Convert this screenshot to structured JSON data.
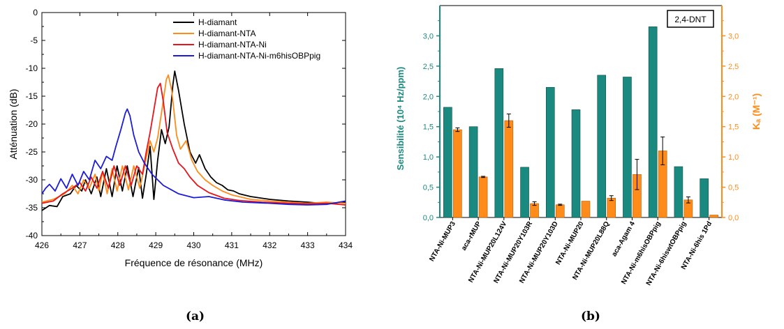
{
  "colors": {
    "teal": "#1a8a80",
    "orange": "#ff8c1a",
    "axis_teal": "#1a8a80",
    "axis_orange": "#ff8c1a"
  },
  "captions": {
    "a": "(a)",
    "b": "(b)"
  },
  "chart_data": [
    {
      "type": "line",
      "xlabel": "Fréquence de résonance (MHz)",
      "ylabel": "Atténuation (dB)",
      "xlim": [
        426,
        434
      ],
      "ylim": [
        -40,
        0
      ],
      "x_ticks": [
        "426",
        "427",
        "428",
        "429",
        "430",
        "431",
        "432",
        "433",
        "434"
      ],
      "y_ticks": [
        "0",
        "-5",
        "-10",
        "-15",
        "-20",
        "-25",
        "-30",
        "-35",
        "-40"
      ],
      "legend_position": "top-right",
      "grid": false,
      "series": [
        {
          "name": "H-diamant",
          "color": "#000000",
          "points": [
            [
              426.0,
              -35.5
            ],
            [
              426.2,
              -34.6
            ],
            [
              426.4,
              -34.8
            ],
            [
              426.55,
              -33.0
            ],
            [
              426.75,
              -32.5
            ],
            [
              426.9,
              -31.0
            ],
            [
              427.05,
              -32.0
            ],
            [
              427.15,
              -30.0
            ],
            [
              427.3,
              -32.5
            ],
            [
              427.45,
              -29.5
            ],
            [
              427.55,
              -33.0
            ],
            [
              427.7,
              -28.0
            ],
            [
              427.85,
              -33.0
            ],
            [
              427.98,
              -27.5
            ],
            [
              428.12,
              -32.0
            ],
            [
              428.25,
              -27.5
            ],
            [
              428.4,
              -33.0
            ],
            [
              428.55,
              -27.8
            ],
            [
              428.65,
              -33.3
            ],
            [
              428.75,
              -29.0
            ],
            [
              428.85,
              -24.0
            ],
            [
              428.95,
              -33.5
            ],
            [
              429.05,
              -26.5
            ],
            [
              429.15,
              -21.0
            ],
            [
              429.25,
              -23.5
            ],
            [
              429.35,
              -20.5
            ],
            [
              429.45,
              -13.0
            ],
            [
              429.5,
              -10.5
            ],
            [
              429.6,
              -14.0
            ],
            [
              429.75,
              -20.0
            ],
            [
              429.9,
              -25.0
            ],
            [
              430.05,
              -27.0
            ],
            [
              430.15,
              -25.5
            ],
            [
              430.3,
              -28.0
            ],
            [
              430.45,
              -29.5
            ],
            [
              430.6,
              -30.5
            ],
            [
              430.75,
              -31.0
            ],
            [
              430.9,
              -31.8
            ],
            [
              431.05,
              -32.0
            ],
            [
              431.2,
              -32.5
            ],
            [
              431.5,
              -33.0
            ],
            [
              432.0,
              -33.5
            ],
            [
              432.5,
              -33.8
            ],
            [
              433.0,
              -34.0
            ],
            [
              433.5,
              -34.3
            ],
            [
              434.0,
              -34.0
            ]
          ]
        },
        {
          "name": "H-diamant-NTA",
          "color": "#ff8c1a",
          "points": [
            [
              426.0,
              -34.0
            ],
            [
              426.3,
              -33.5
            ],
            [
              426.6,
              -32.5
            ],
            [
              426.8,
              -31.0
            ],
            [
              426.95,
              -32.5
            ],
            [
              427.1,
              -30.0
            ],
            [
              427.25,
              -31.5
            ],
            [
              427.4,
              -29.0
            ],
            [
              427.5,
              -32.0
            ],
            [
              427.6,
              -28.5
            ],
            [
              427.72,
              -32.5
            ],
            [
              427.85,
              -28.0
            ],
            [
              427.98,
              -32.0
            ],
            [
              428.12,
              -27.5
            ],
            [
              428.28,
              -31.8
            ],
            [
              428.42,
              -27.5
            ],
            [
              428.58,
              -31.5
            ],
            [
              428.75,
              -26.0
            ],
            [
              428.85,
              -23.0
            ],
            [
              428.95,
              -25.0
            ],
            [
              429.05,
              -22.5
            ],
            [
              429.15,
              -18.0
            ],
            [
              429.28,
              -12.0
            ],
            [
              429.33,
              -11.2
            ],
            [
              429.42,
              -14.0
            ],
            [
              429.55,
              -22.0
            ],
            [
              429.65,
              -24.5
            ],
            [
              429.8,
              -23.0
            ],
            [
              429.95,
              -26.5
            ],
            [
              430.1,
              -28.5
            ],
            [
              430.3,
              -30.0
            ],
            [
              430.5,
              -31.0
            ],
            [
              430.75,
              -32.0
            ],
            [
              431.0,
              -32.7
            ],
            [
              431.5,
              -33.5
            ],
            [
              432.0,
              -33.8
            ],
            [
              432.5,
              -34.0
            ],
            [
              433.0,
              -34.2
            ],
            [
              433.5,
              -34.0
            ],
            [
              434.0,
              -34.2
            ]
          ]
        },
        {
          "name": "H-diamant-NTA-Ni",
          "color": "#e8141c",
          "points": [
            [
              426.0,
              -34.2
            ],
            [
              426.3,
              -33.8
            ],
            [
              426.55,
              -32.5
            ],
            [
              426.8,
              -31.5
            ],
            [
              427.0,
              -30.5
            ],
            [
              427.15,
              -32.0
            ],
            [
              427.3,
              -29.5
            ],
            [
              427.45,
              -31.5
            ],
            [
              427.6,
              -28.5
            ],
            [
              427.75,
              -31.5
            ],
            [
              427.9,
              -27.5
            ],
            [
              428.05,
              -31.0
            ],
            [
              428.2,
              -27.5
            ],
            [
              428.35,
              -31.0
            ],
            [
              428.5,
              -27.5
            ],
            [
              428.65,
              -29.0
            ],
            [
              428.75,
              -25.0
            ],
            [
              428.85,
              -21.5
            ],
            [
              428.95,
              -17.5
            ],
            [
              429.05,
              -13.5
            ],
            [
              429.12,
              -12.7
            ],
            [
              429.2,
              -16.0
            ],
            [
              429.3,
              -21.5
            ],
            [
              429.45,
              -24.5
            ],
            [
              429.6,
              -27.0
            ],
            [
              429.75,
              -28.0
            ],
            [
              429.9,
              -29.5
            ],
            [
              430.1,
              -31.0
            ],
            [
              430.4,
              -32.3
            ],
            [
              430.8,
              -33.3
            ],
            [
              431.2,
              -33.7
            ],
            [
              431.8,
              -34.0
            ],
            [
              432.5,
              -34.2
            ],
            [
              433.0,
              -34.3
            ],
            [
              433.5,
              -34.2
            ],
            [
              434.0,
              -34.5
            ]
          ]
        },
        {
          "name": "H-diamant-NTA-Ni-m6hisOBPpig",
          "color": "#1c1cd8",
          "points": [
            [
              426.0,
              -32.5
            ],
            [
              426.1,
              -31.5
            ],
            [
              426.2,
              -30.8
            ],
            [
              426.35,
              -32.0
            ],
            [
              426.5,
              -29.8
            ],
            [
              426.65,
              -31.5
            ],
            [
              426.8,
              -29.0
            ],
            [
              426.95,
              -31.0
            ],
            [
              427.1,
              -28.5
            ],
            [
              427.25,
              -30.0
            ],
            [
              427.4,
              -26.5
            ],
            [
              427.55,
              -28.0
            ],
            [
              427.7,
              -25.8
            ],
            [
              427.85,
              -26.5
            ],
            [
              427.95,
              -24.0
            ],
            [
              428.08,
              -21.0
            ],
            [
              428.2,
              -18.0
            ],
            [
              428.25,
              -17.3
            ],
            [
              428.32,
              -18.5
            ],
            [
              428.42,
              -22.0
            ],
            [
              428.55,
              -25.0
            ],
            [
              428.7,
              -27.0
            ],
            [
              428.9,
              -29.0
            ],
            [
              429.2,
              -31.0
            ],
            [
              429.6,
              -32.5
            ],
            [
              430.0,
              -33.2
            ],
            [
              430.4,
              -33.0
            ],
            [
              430.8,
              -33.6
            ],
            [
              431.3,
              -34.0
            ],
            [
              432.0,
              -34.2
            ],
            [
              432.5,
              -34.4
            ],
            [
              433.0,
              -34.5
            ],
            [
              433.5,
              -34.4
            ],
            [
              434.0,
              -33.8
            ]
          ]
        }
      ]
    },
    {
      "type": "bar",
      "annotation": "2,4-DNT",
      "ylabel_left": "Sensibilité (10⁴ Hz/ppm)",
      "ylabel_right": "Kₐ (M⁻¹)",
      "ylim_left": [
        0,
        3.5
      ],
      "ylim_right": [
        0,
        3.5
      ],
      "y_ticks": [
        "0,0",
        "0,5",
        "1,0",
        "1,5",
        "2,0",
        "2,5",
        "3,0"
      ],
      "categories": [
        "NTA-Ni-MUP3",
        "aca-rMUP",
        "NTA-Ni-MUP20L124V",
        "NTA-Ni-MUP20Y103R",
        "NTA-Ni-MUP20Y103D",
        "NTA-Ni-MUP20",
        "NTA-Ni-MUP20L88Q",
        "aca-Agam 4",
        "NTA-Ni-m6hisOBPpig",
        "NTA-Ni-6hiswtOBPpig",
        "NTA-Ni-6his 1Pd"
      ],
      "series": [
        {
          "name": "Sensibilité",
          "axis": "left",
          "values": [
            1.82,
            1.5,
            2.46,
            0.83,
            2.15,
            1.78,
            2.35,
            2.32,
            3.15,
            0.84,
            0.64
          ]
        },
        {
          "name": "Ka",
          "axis": "right",
          "values": [
            1.45,
            0.67,
            1.6,
            0.23,
            0.21,
            0.27,
            0.32,
            0.71,
            1.1,
            0.29,
            0.04
          ],
          "errors": [
            0.03,
            0.01,
            0.11,
            0.03,
            0.01,
            0.0,
            0.04,
            0.25,
            0.23,
            0.05,
            0.0
          ]
        }
      ]
    }
  ]
}
